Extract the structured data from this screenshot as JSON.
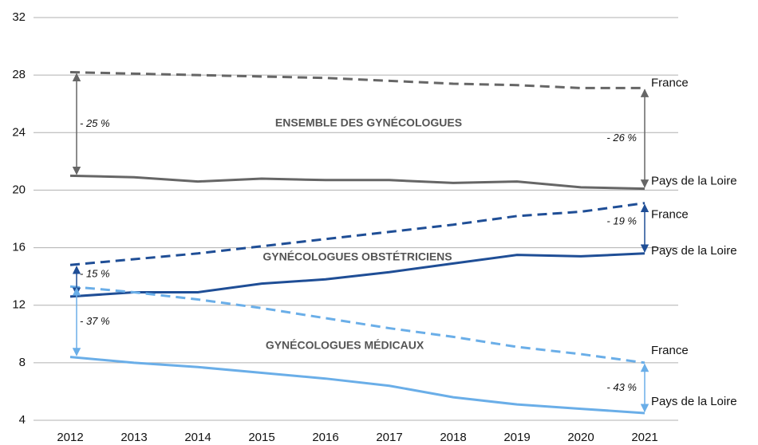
{
  "chart_data": {
    "type": "line",
    "categories": [
      "2012",
      "2013",
      "2014",
      "2015",
      "2016",
      "2017",
      "2018",
      "2019",
      "2020",
      "2021"
    ],
    "series": [
      {
        "name": "France",
        "color": "#666666",
        "dashed": true,
        "values": [
          28.2,
          28.1,
          28.0,
          27.9,
          27.8,
          27.6,
          27.4,
          27.3,
          27.1,
          27.1
        ]
      },
      {
        "name": "Pays de la Loire",
        "color": "#666666",
        "dashed": false,
        "values": [
          21.0,
          20.9,
          20.6,
          20.8,
          20.7,
          20.7,
          20.5,
          20.6,
          20.2,
          20.1
        ]
      },
      {
        "name": "France",
        "color": "#1f4e96",
        "dashed": true,
        "values": [
          14.8,
          15.2,
          15.6,
          16.1,
          16.6,
          17.1,
          17.6,
          18.2,
          18.5,
          19.1
        ]
      },
      {
        "name": "Pays de la Loire",
        "color": "#1f4e96",
        "dashed": false,
        "values": [
          12.6,
          12.9,
          12.9,
          13.5,
          13.8,
          14.3,
          14.9,
          15.5,
          15.4,
          15.6
        ]
      },
      {
        "name": "France",
        "color": "#6aaee8",
        "dashed": true,
        "values": [
          13.3,
          12.9,
          12.4,
          11.8,
          11.1,
          10.4,
          9.8,
          9.1,
          8.6,
          8.0
        ]
      },
      {
        "name": "Pays de la Loire",
        "color": "#6aaee8",
        "dashed": false,
        "values": [
          8.4,
          8.0,
          7.7,
          7.3,
          6.9,
          6.4,
          5.6,
          5.1,
          4.8,
          4.5
        ]
      }
    ],
    "group_labels": [
      "ENSEMBLE DES GYNÉCOLOGUES",
      "GYNÉCOLOGUES OBSTÉTRICIENS",
      "GYNÉCOLOGUES MÉDICAUX"
    ],
    "annotations": [
      {
        "text": "- 25 %",
        "from": 0,
        "to": 1,
        "at": 0
      },
      {
        "text": "- 26 %",
        "from": 0,
        "to": 1,
        "at": 9
      },
      {
        "text": "- 15 %",
        "from": 2,
        "to": 3,
        "at": 0
      },
      {
        "text": "- 19 %",
        "from": 2,
        "to": 3,
        "at": 9
      },
      {
        "text": "- 37 %",
        "from": 4,
        "to": 5,
        "at": 0
      },
      {
        "text": "- 43 %",
        "from": 4,
        "to": 5,
        "at": 9
      }
    ],
    "ylim": [
      4,
      32
    ],
    "yticks": [
      4,
      8,
      12,
      16,
      20,
      24,
      28,
      32
    ],
    "grid": true
  }
}
